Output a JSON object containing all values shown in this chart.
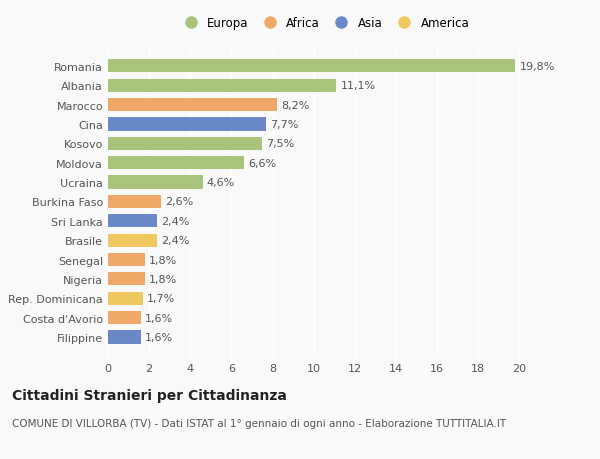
{
  "categories": [
    "Filippine",
    "Costa d'Avorio",
    "Rep. Dominicana",
    "Nigeria",
    "Senegal",
    "Brasile",
    "Sri Lanka",
    "Burkina Faso",
    "Ucraina",
    "Moldova",
    "Kosovo",
    "Cina",
    "Marocco",
    "Albania",
    "Romania"
  ],
  "values": [
    1.6,
    1.6,
    1.7,
    1.8,
    1.8,
    2.4,
    2.4,
    2.6,
    4.6,
    6.6,
    7.5,
    7.7,
    8.2,
    11.1,
    19.8
  ],
  "labels": [
    "1,6%",
    "1,6%",
    "1,7%",
    "1,8%",
    "1,8%",
    "2,4%",
    "2,4%",
    "2,6%",
    "4,6%",
    "6,6%",
    "7,5%",
    "7,7%",
    "8,2%",
    "11,1%",
    "19,8%"
  ],
  "continent": [
    "Asia",
    "Africa",
    "America",
    "Africa",
    "Africa",
    "America",
    "Asia",
    "Africa",
    "Europa",
    "Europa",
    "Europa",
    "Asia",
    "Africa",
    "Europa",
    "Europa"
  ],
  "colors": {
    "Europa": "#a8c47a",
    "Africa": "#f0a868",
    "Asia": "#6888c8",
    "America": "#f0c860"
  },
  "legend_order": [
    "Europa",
    "Africa",
    "Asia",
    "America"
  ],
  "xlim": [
    0,
    21
  ],
  "xticks": [
    0,
    2,
    4,
    6,
    8,
    10,
    12,
    14,
    16,
    18,
    20
  ],
  "title": "Cittadini Stranieri per Cittadinanza",
  "subtitle": "COMUNE DI VILLORBA (TV) - Dati ISTAT al 1° gennaio di ogni anno - Elaborazione TUTTITALIA.IT",
  "background_color": "#f9f9f9",
  "bar_height": 0.68,
  "title_fontsize": 10,
  "subtitle_fontsize": 7.5,
  "label_fontsize": 8,
  "legend_fontsize": 8.5,
  "tick_fontsize": 8
}
